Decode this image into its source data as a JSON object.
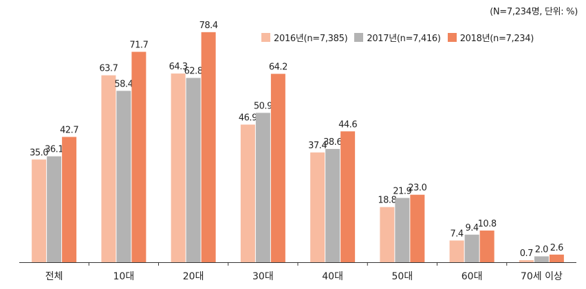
{
  "note": "(N=7,234명, 단위: %)",
  "chart_data": {
    "type": "bar",
    "categories": [
      "전체",
      "10대",
      "20대",
      "30대",
      "40대",
      "50대",
      "60대",
      "70세 이상"
    ],
    "series": [
      {
        "name": "2016년(n=7,385)",
        "color": "#F8BBA0",
        "values": [
          35.0,
          63.7,
          64.3,
          46.9,
          37.4,
          18.8,
          7.4,
          0.7
        ]
      },
      {
        "name": "2017년(n=7,416)",
        "color": "#B3B3B3",
        "values": [
          36.1,
          58.4,
          62.8,
          50.9,
          38.6,
          21.9,
          9.4,
          2.0
        ]
      },
      {
        "name": "2018년(n=7,234)",
        "color": "#F0845C",
        "values": [
          42.7,
          71.7,
          78.4,
          64.2,
          44.6,
          23.0,
          10.8,
          2.6
        ]
      }
    ],
    "ylim": [
      0,
      80
    ],
    "grid": false,
    "legend": "top-right"
  }
}
